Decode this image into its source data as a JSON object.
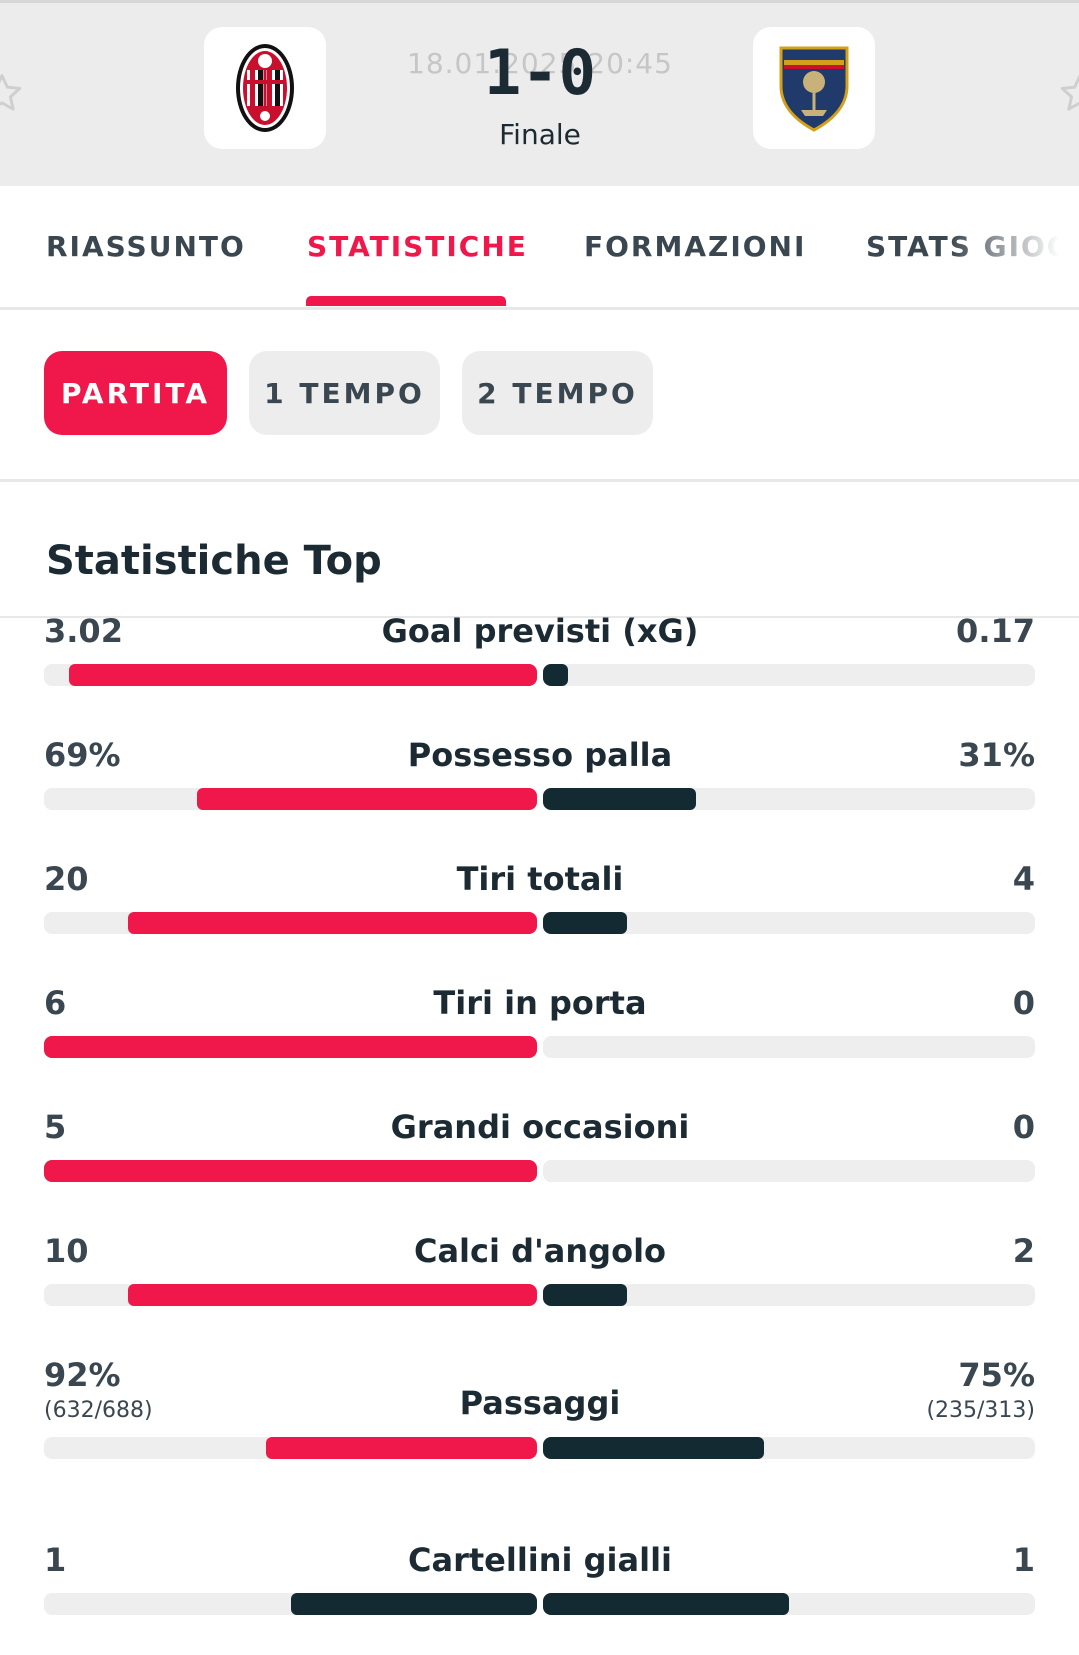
{
  "match": {
    "home_team": "AC Milan",
    "away_team": "US Lecce",
    "date_time": "18.01.2025 20:45",
    "score": "1-0",
    "status": "Finale"
  },
  "tabs": [
    {
      "label": "RIASSUNTO",
      "active": false
    },
    {
      "label": "STATISTICHE",
      "active": true
    },
    {
      "label": "FORMAZIONI",
      "active": false
    },
    {
      "label": "STATS GIOCATORI",
      "active": false
    }
  ],
  "periods": [
    {
      "label": "PARTITA",
      "active": true
    },
    {
      "label": "1 TEMPO",
      "active": false
    },
    {
      "label": "2 TEMPO",
      "active": false
    }
  ],
  "section_title": "Statistiche Top",
  "colors": {
    "accent": "#f0174a",
    "dark": "#142a33",
    "track": "#eeeeee"
  },
  "stats": [
    {
      "label": "Goal previsti (xG)",
      "home": "3.02",
      "away": "0.17",
      "home_share": 0.95,
      "away_share": 0.05,
      "home_color": "red",
      "away_color": "dark"
    },
    {
      "label": "Possesso palla",
      "home": "69%",
      "away": "31%",
      "home_share": 0.69,
      "away_share": 0.31,
      "home_color": "red",
      "away_color": "dark"
    },
    {
      "label": "Tiri totali",
      "home": "20",
      "away": "4",
      "home_share": 0.83,
      "away_share": 0.17,
      "home_color": "red",
      "away_color": "dark"
    },
    {
      "label": "Tiri in porta",
      "home": "6",
      "away": "0",
      "home_share": 1.0,
      "away_share": 0.0,
      "home_color": "red",
      "away_color": "dark"
    },
    {
      "label": "Grandi occasioni",
      "home": "5",
      "away": "0",
      "home_share": 1.0,
      "away_share": 0.0,
      "home_color": "red",
      "away_color": "dark"
    },
    {
      "label": "Calci d'angolo",
      "home": "10",
      "away": "2",
      "home_share": 0.83,
      "away_share": 0.17,
      "home_color": "red",
      "away_color": "dark"
    },
    {
      "label": "Passaggi",
      "home": "92%",
      "home_sub": "(632/688)",
      "away": "75%",
      "away_sub": "(235/313)",
      "home_share": 0.55,
      "away_share": 0.45,
      "home_color": "red",
      "away_color": "dark"
    },
    {
      "label": "Cartellini gialli",
      "home": "1",
      "away": "1",
      "home_share": 0.5,
      "away_share": 0.5,
      "home_color": "dark",
      "away_color": "dark"
    }
  ]
}
